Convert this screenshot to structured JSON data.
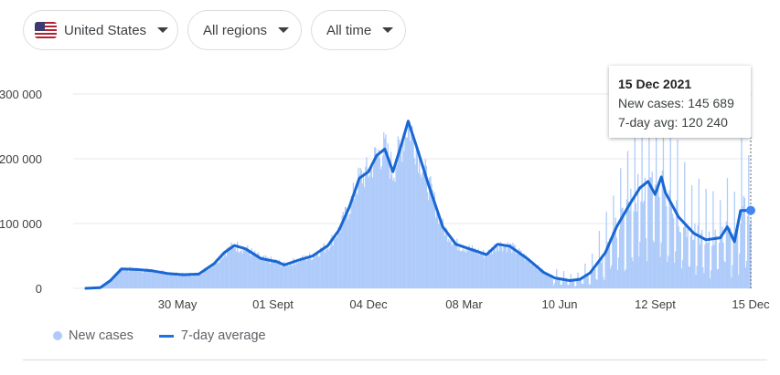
{
  "filters": {
    "country": "United States",
    "region": "All regions",
    "time": "All time"
  },
  "colors": {
    "bars": "#aecbfa",
    "line": "#1967d2",
    "grid": "#e8eaed"
  },
  "tooltip": {
    "date": "15 Dec 2021",
    "new_cases": "New cases: 145 689",
    "avg": "7-day avg: 120 240"
  },
  "legend": {
    "new_cases": "New cases",
    "avg": "7-day average"
  },
  "chart_data": {
    "type": "bar+line",
    "ylim": [
      0,
      300000
    ],
    "yticks": [
      0,
      100000,
      200000,
      300000
    ],
    "ytick_labels": [
      "0",
      "100 000",
      "200 000",
      "300 000"
    ],
    "x_range": [
      "2020-03-01",
      "2021-12-15"
    ],
    "xticks": [
      "2020-05-30",
      "2020-09-01",
      "2020-12-04",
      "2021-03-08",
      "2021-06-10",
      "2021-09-12",
      "2021-12-15"
    ],
    "xtick_labels": [
      "30 May",
      "01 Sept",
      "04 Dec",
      "08 Mar",
      "10 Jun",
      "12 Sept",
      "15 Dec"
    ],
    "series": [
      {
        "name": "7-day average",
        "points": [
          [
            "2020-03-01",
            0
          ],
          [
            "2020-03-15",
            1000
          ],
          [
            "2020-03-25",
            12000
          ],
          [
            "2020-04-05",
            30000
          ],
          [
            "2020-04-20",
            29000
          ],
          [
            "2020-05-05",
            27000
          ],
          [
            "2020-05-20",
            23000
          ],
          [
            "2020-06-05",
            21000
          ],
          [
            "2020-06-20",
            22000
          ],
          [
            "2020-07-05",
            38000
          ],
          [
            "2020-07-15",
            55000
          ],
          [
            "2020-07-25",
            66000
          ],
          [
            "2020-08-05",
            61000
          ],
          [
            "2020-08-20",
            46000
          ],
          [
            "2020-09-05",
            41000
          ],
          [
            "2020-09-12",
            36000
          ],
          [
            "2020-09-25",
            43000
          ],
          [
            "2020-10-10",
            50000
          ],
          [
            "2020-10-25",
            66000
          ],
          [
            "2020-11-05",
            90000
          ],
          [
            "2020-11-15",
            125000
          ],
          [
            "2020-11-25",
            170000
          ],
          [
            "2020-12-04",
            180000
          ],
          [
            "2020-12-12",
            205000
          ],
          [
            "2020-12-20",
            215000
          ],
          [
            "2020-12-28",
            180000
          ],
          [
            "2021-01-05",
            220000
          ],
          [
            "2021-01-12",
            258000
          ],
          [
            "2021-01-20",
            220000
          ],
          [
            "2021-02-01",
            160000
          ],
          [
            "2021-02-15",
            95000
          ],
          [
            "2021-02-28",
            68000
          ],
          [
            "2021-03-15",
            60000
          ],
          [
            "2021-03-30",
            52000
          ],
          [
            "2021-04-10",
            68000
          ],
          [
            "2021-04-22",
            65000
          ],
          [
            "2021-05-10",
            45000
          ],
          [
            "2021-05-25",
            25000
          ],
          [
            "2021-06-05",
            16000
          ],
          [
            "2021-06-20",
            12000
          ],
          [
            "2021-06-30",
            14000
          ],
          [
            "2021-07-10",
            24000
          ],
          [
            "2021-07-25",
            55000
          ],
          [
            "2021-08-05",
            95000
          ],
          [
            "2021-08-18",
            130000
          ],
          [
            "2021-08-28",
            155000
          ],
          [
            "2021-09-05",
            165000
          ],
          [
            "2021-09-12",
            145000
          ],
          [
            "2021-09-18",
            172000
          ],
          [
            "2021-09-22",
            148000
          ],
          [
            "2021-10-05",
            110000
          ],
          [
            "2021-10-20",
            85000
          ],
          [
            "2021-11-01",
            75000
          ],
          [
            "2021-11-15",
            78000
          ],
          [
            "2021-11-22",
            95000
          ],
          [
            "2021-11-29",
            72000
          ],
          [
            "2021-12-05",
            120000
          ],
          [
            "2021-12-15",
            120240
          ]
        ]
      },
      {
        "name": "New cases",
        "note_pattern": "daily bars scattered around the 7-day average"
      }
    ],
    "highlight_point": [
      "2021-12-15",
      120240
    ]
  }
}
